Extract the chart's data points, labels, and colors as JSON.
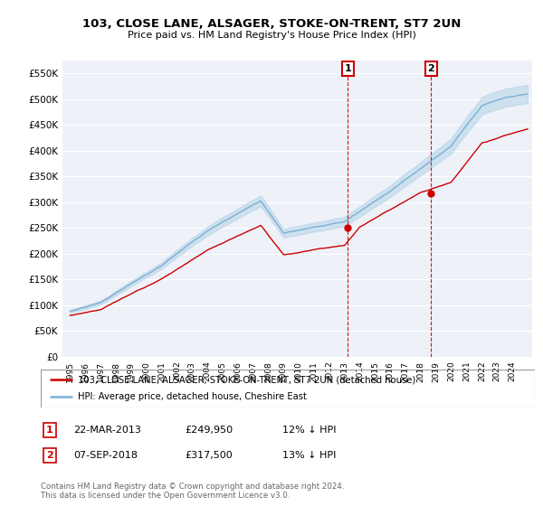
{
  "title": "103, CLOSE LANE, ALSAGER, STOKE-ON-TRENT, ST7 2UN",
  "subtitle": "Price paid vs. HM Land Registry's House Price Index (HPI)",
  "ylim": [
    0,
    575000
  ],
  "yticks": [
    0,
    50000,
    100000,
    150000,
    200000,
    250000,
    300000,
    350000,
    400000,
    450000,
    500000,
    550000
  ],
  "ytick_labels": [
    "£0",
    "£50K",
    "£100K",
    "£150K",
    "£200K",
    "£250K",
    "£300K",
    "£350K",
    "£400K",
    "£450K",
    "£500K",
    "£550K"
  ],
  "legend_entries": [
    "103, CLOSE LANE, ALSAGER, STOKE-ON-TRENT, ST7 2UN (detached house)",
    "HPI: Average price, detached house, Cheshire East"
  ],
  "legend_colors": [
    "#cc0000",
    "#7ab0d4"
  ],
  "annotation1": {
    "label": "1",
    "date": "22-MAR-2013",
    "price": "£249,950",
    "note": "12% ↓ HPI"
  },
  "annotation2": {
    "label": "2",
    "date": "07-SEP-2018",
    "price": "£317,500",
    "note": "13% ↓ HPI"
  },
  "footer": "Contains HM Land Registry data © Crown copyright and database right 2024.\nThis data is licensed under the Open Government Licence v3.0.",
  "plot_bg": "#eef2f8",
  "grid_color": "#ffffff",
  "hpi_color": "#7ab0d4",
  "hpi_fill_color": "#b8d4e8",
  "price_color": "#cc0000",
  "vline_color": "#cc0000",
  "sale1_year": 2013.22,
  "sale1_price": 249950,
  "sale2_year": 2018.68,
  "sale2_price": 317500
}
